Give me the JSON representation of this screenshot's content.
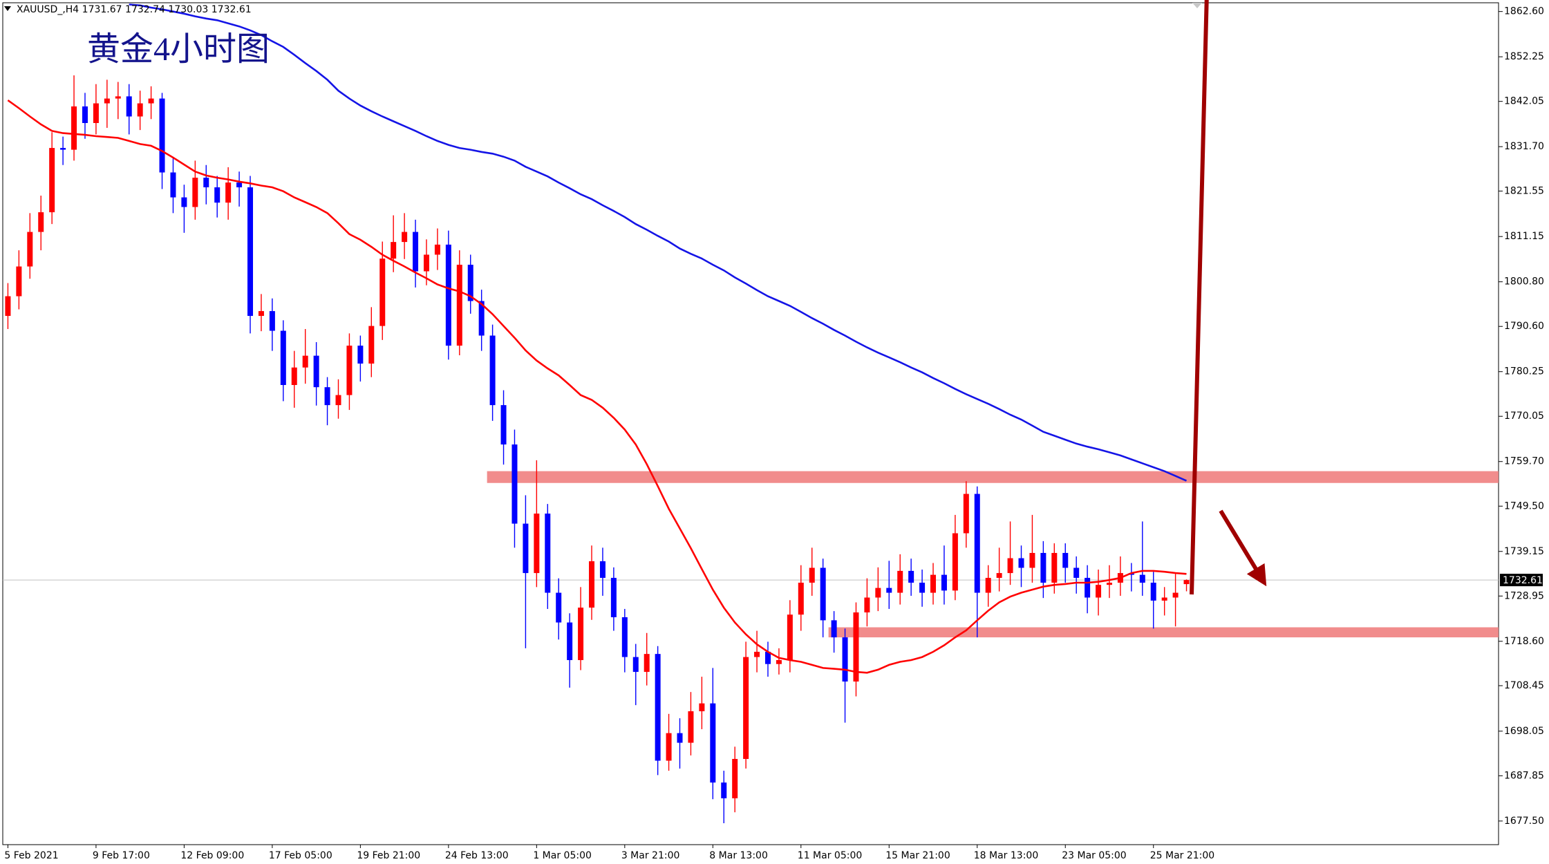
{
  "chart_data": {
    "type": "candlestick",
    "title": "黄金4小时图",
    "symbol": "XAUUSD_,H4",
    "categories": [
      "5 Feb 2021",
      null,
      null,
      null,
      null,
      null,
      null,
      null,
      "9 Feb 17:00",
      null,
      null,
      null,
      null,
      null,
      null,
      null,
      "12 Feb 09:00",
      null,
      null,
      null,
      null,
      null,
      null,
      null,
      "17 Feb 05:00",
      null,
      null,
      null,
      null,
      null,
      null,
      null,
      "19 Feb 21:00",
      null,
      null,
      null,
      null,
      null,
      null,
      null,
      "24 Feb 13:00",
      null,
      null,
      null,
      null,
      null,
      null,
      null,
      "1 Mar 05:00",
      null,
      null,
      null,
      null,
      null,
      null,
      null,
      "3 Mar 21:00",
      null,
      null,
      null,
      null,
      null,
      null,
      null,
      "8 Mar 13:00",
      null,
      null,
      null,
      null,
      null,
      null,
      null,
      "11 Mar 05:00",
      null,
      null,
      null,
      null,
      null,
      null,
      null,
      "15 Mar 21:00",
      null,
      null,
      null,
      null,
      null,
      null,
      null,
      "18 Mar 13:00",
      null,
      null,
      null,
      null,
      null,
      null,
      null,
      "23 Mar 05:00",
      null,
      null,
      null,
      null,
      null,
      null,
      null,
      "25 Mar 21:00",
      null,
      null,
      null
    ],
    "open": [
      1793.0,
      1797.5,
      1804.3,
      1812.2,
      1816.7,
      1831.4,
      1831.0,
      1840.9,
      1837.1,
      1841.6,
      1842.7,
      1843.2,
      1838.6,
      1841.6,
      1842.7,
      1825.8,
      1820.1,
      1817.9,
      1824.6,
      1822.4,
      1818.9,
      1823.5,
      1822.4,
      1793.0,
      1794.1,
      1789.6,
      1777.2,
      1781.2,
      1783.9,
      1776.7,
      1772.6,
      1774.9,
      1786.2,
      1782.1,
      1790.7,
      1806.1,
      1809.9,
      1812.2,
      1803.2,
      1807.0,
      1809.3,
      1786.2,
      1804.7,
      1796.4,
      1788.5,
      1772.6,
      1763.6,
      1745.5,
      1734.2,
      1747.8,
      1729.7,
      1722.9,
      1714.3,
      1726.3,
      1736.9,
      1733.1,
      1724.1,
      1715.0,
      1711.6,
      1715.7,
      1691.3,
      1697.6,
      1695.4,
      1702.6,
      1704.4,
      1686.3,
      1682.7,
      1691.7,
      1715.0,
      1716.2,
      1713.4,
      1714.3,
      1724.7,
      1732.0,
      1735.4,
      1723.4,
      1719.5,
      1709.4,
      1725.2,
      1728.6,
      1730.8,
      1729.7,
      1734.7,
      1732.0,
      1729.7,
      1733.8,
      1730.2,
      1743.3,
      1752.3,
      1729.7,
      1733.1,
      1734.2,
      1737.6,
      1735.4,
      1738.8,
      1732.0,
      1738.8,
      1735.4,
      1733.1,
      1728.6,
      1731.5,
      1732.0,
      1734.2,
      1733.8,
      1732.0,
      1727.9,
      1728.6,
      1731.67
    ],
    "high": [
      1800.5,
      1808.0,
      1816.5,
      1820.5,
      1835.0,
      1834.0,
      1848.0,
      1844.0,
      1846.0,
      1847.0,
      1846.5,
      1846.0,
      1844.5,
      1845.5,
      1844.0,
      1829.0,
      1823.0,
      1828.5,
      1827.5,
      1825.0,
      1827.0,
      1826.0,
      1825.0,
      1798.0,
      1797.0,
      1792.0,
      1785.0,
      1790.0,
      1787.0,
      1779.0,
      1778.5,
      1789.0,
      1788.5,
      1795.0,
      1810.0,
      1816.0,
      1816.5,
      1815.0,
      1810.5,
      1813.0,
      1812.5,
      1808.0,
      1807.0,
      1799.0,
      1791.0,
      1776.0,
      1767.0,
      1752.0,
      1760.0,
      1750.0,
      1733.0,
      1725.0,
      1731.0,
      1740.5,
      1740.0,
      1735.5,
      1726.0,
      1718.0,
      1720.5,
      1717.5,
      1702.0,
      1701.0,
      1707.0,
      1710.5,
      1712.5,
      1689.0,
      1694.5,
      1718.5,
      1721.0,
      1718.5,
      1717.0,
      1728.0,
      1736.0,
      1740.0,
      1737.5,
      1725.5,
      1721.5,
      1727.5,
      1733.0,
      1735.5,
      1737.0,
      1738.5,
      1737.5,
      1735.0,
      1736.5,
      1740.5,
      1747.5,
      1755.2,
      1754.0,
      1736.0,
      1740.0,
      1746.0,
      1740.5,
      1747.5,
      1741.5,
      1741.0,
      1741.0,
      1738.0,
      1736.0,
      1735.0,
      1736.0,
      1738.0,
      1736.5,
      1746.0,
      1734.5,
      1731.0,
      1734.0,
      1732.74
    ],
    "low": [
      1790.0,
      1794.5,
      1801.5,
      1808.0,
      1814.0,
      1827.5,
      1828.5,
      1833.5,
      1834.5,
      1836.0,
      1838.0,
      1834.5,
      1835.5,
      1838.0,
      1822.0,
      1816.5,
      1812.0,
      1815.0,
      1818.5,
      1815.5,
      1815.0,
      1818.0,
      1789.0,
      1789.5,
      1785.0,
      1773.5,
      1772.0,
      1777.5,
      1772.5,
      1768.0,
      1769.5,
      1771.5,
      1778.0,
      1779.0,
      1787.5,
      1803.0,
      1806.0,
      1799.5,
      1800.0,
      1803.5,
      1783.0,
      1784.0,
      1793.5,
      1785.0,
      1769.0,
      1759.0,
      1740.0,
      1717.0,
      1731.0,
      1726.0,
      1719.0,
      1708.0,
      1712.0,
      1723.5,
      1729.0,
      1721.0,
      1711.5,
      1704.0,
      1708.5,
      1688.0,
      1689.0,
      1689.5,
      1692.5,
      1698.5,
      1682.5,
      1677.0,
      1679.5,
      1689.5,
      1711.5,
      1710.5,
      1711.0,
      1711.5,
      1721.0,
      1729.0,
      1719.5,
      1716.0,
      1700.0,
      1706.0,
      1722.0,
      1725.5,
      1726.0,
      1727.0,
      1729.0,
      1726.5,
      1727.0,
      1727.0,
      1728.0,
      1740.0,
      1719.5,
      1726.5,
      1730.0,
      1731.5,
      1731.0,
      1732.0,
      1728.5,
      1729.5,
      1732.0,
      1729.5,
      1725.0,
      1724.5,
      1728.5,
      1729.0,
      1730.0,
      1729.0,
      1721.5,
      1724.5,
      1722.0,
      1730.03
    ],
    "close": [
      1797.5,
      1804.3,
      1812.2,
      1816.7,
      1831.4,
      1831.0,
      1840.9,
      1837.1,
      1841.6,
      1842.7,
      1843.2,
      1838.6,
      1841.6,
      1842.7,
      1825.8,
      1820.1,
      1817.9,
      1824.6,
      1822.4,
      1818.9,
      1823.5,
      1822.4,
      1793.0,
      1794.1,
      1789.6,
      1777.2,
      1781.2,
      1783.9,
      1776.7,
      1772.6,
      1774.9,
      1786.2,
      1782.1,
      1790.7,
      1806.1,
      1809.9,
      1812.2,
      1803.2,
      1807.0,
      1809.3,
      1786.2,
      1804.7,
      1796.4,
      1788.5,
      1772.6,
      1763.6,
      1745.5,
      1734.2,
      1747.8,
      1729.7,
      1722.9,
      1714.3,
      1726.3,
      1736.9,
      1733.1,
      1724.1,
      1715.0,
      1711.6,
      1715.7,
      1691.3,
      1697.6,
      1695.4,
      1702.6,
      1704.4,
      1686.3,
      1682.7,
      1691.7,
      1715.0,
      1716.2,
      1713.4,
      1714.3,
      1724.7,
      1732.0,
      1735.4,
      1723.4,
      1719.5,
      1709.4,
      1725.2,
      1728.6,
      1730.8,
      1729.7,
      1734.7,
      1732.0,
      1729.7,
      1733.8,
      1730.2,
      1743.3,
      1752.3,
      1729.7,
      1733.1,
      1734.2,
      1737.6,
      1735.4,
      1738.8,
      1732.0,
      1738.8,
      1735.4,
      1733.1,
      1728.6,
      1731.5,
      1732.0,
      1734.2,
      1733.8,
      1732.0,
      1727.9,
      1728.6,
      1729.7,
      1732.61
    ],
    "up_color": "#ff0000",
    "down_color": "#0000ff",
    "moving_averages": [
      {
        "color": "#ff0000",
        "values": [
          1842.3,
          1840.5,
          1838.6,
          1836.8,
          1835.3,
          1834.8,
          1834.6,
          1834.4,
          1834.1,
          1833.9,
          1833.7,
          1833.0,
          1832.3,
          1831.9,
          1830.7,
          1829.2,
          1827.6,
          1826.0,
          1825.1,
          1824.6,
          1824.2,
          1823.7,
          1823.3,
          1822.8,
          1822.4,
          1821.5,
          1820.1,
          1819.0,
          1817.9,
          1816.5,
          1814.2,
          1811.7,
          1810.4,
          1808.8,
          1807.0,
          1805.6,
          1804.3,
          1802.9,
          1801.6,
          1800.2,
          1799.3,
          1798.6,
          1797.5,
          1795.7,
          1793.4,
          1790.7,
          1788.0,
          1785.1,
          1782.8,
          1781.0,
          1779.4,
          1777.2,
          1774.9,
          1773.8,
          1772.0,
          1769.7,
          1767.0,
          1763.6,
          1759.1,
          1754.1,
          1748.9,
          1744.4,
          1739.9,
          1735.1,
          1730.4,
          1726.3,
          1722.9,
          1720.2,
          1717.9,
          1716.2,
          1714.8,
          1714.3,
          1713.9,
          1713.2,
          1712.5,
          1712.3,
          1712.1,
          1711.6,
          1711.4,
          1712.1,
          1713.2,
          1713.9,
          1714.3,
          1715.0,
          1716.2,
          1717.7,
          1719.5,
          1721.1,
          1723.4,
          1725.6,
          1727.5,
          1728.8,
          1729.7,
          1730.4,
          1731.1,
          1731.5,
          1731.7,
          1732.0,
          1732.0,
          1732.2,
          1732.6,
          1733.1,
          1734.2,
          1734.7,
          1734.7,
          1734.5,
          1734.2,
          1734.0
        ]
      },
      {
        "color": "#1414e6",
        "values": [
          null,
          null,
          null,
          null,
          null,
          null,
          null,
          null,
          null,
          null,
          null,
          1864.2,
          1864.0,
          1863.5,
          1863.1,
          1862.6,
          1862.1,
          1861.5,
          1861.0,
          1860.6,
          1859.9,
          1859.2,
          1858.3,
          1857.2,
          1855.8,
          1854.5,
          1852.7,
          1850.8,
          1849.0,
          1847.0,
          1844.5,
          1842.7,
          1841.1,
          1839.8,
          1838.6,
          1837.5,
          1836.4,
          1835.3,
          1834.1,
          1833.0,
          1832.1,
          1831.4,
          1831.0,
          1830.5,
          1830.1,
          1829.4,
          1828.5,
          1827.1,
          1826.0,
          1824.9,
          1823.5,
          1822.2,
          1820.8,
          1819.7,
          1818.3,
          1817.0,
          1815.6,
          1814.0,
          1812.7,
          1811.3,
          1810.0,
          1808.4,
          1807.2,
          1806.1,
          1804.7,
          1803.4,
          1801.8,
          1800.4,
          1798.9,
          1797.5,
          1796.4,
          1795.3,
          1793.9,
          1792.5,
          1791.2,
          1789.8,
          1788.5,
          1787.1,
          1785.8,
          1784.6,
          1783.5,
          1782.4,
          1781.2,
          1780.1,
          1778.8,
          1777.6,
          1776.3,
          1775.1,
          1774.0,
          1772.9,
          1771.7,
          1770.4,
          1769.3,
          1767.9,
          1766.5,
          1765.6,
          1764.7,
          1763.8,
          1763.1,
          1762.5,
          1761.8,
          1761.1,
          1760.2,
          1759.3,
          1758.4,
          1757.5,
          1756.4,
          1755.3
        ]
      }
    ],
    "zones": [
      {
        "low": 1754.8,
        "high": 1757.5,
        "start": 44,
        "color": "#f08080"
      },
      {
        "low": 1719.5,
        "high": 1721.8,
        "start": 75,
        "color": "#f08080"
      }
    ],
    "ylim": [
      1672.1,
      1864.6
    ],
    "yticks": [
      {
        "value": 1862.6,
        "label": "1862.60"
      },
      1852.25,
      1842.05,
      {
        "value": 1831.7,
        "label": "1831.70"
      },
      1821.55,
      1811.15,
      {
        "value": 1800.8,
        "label": "1800.80"
      },
      {
        "value": 1790.6,
        "label": "1790.60"
      },
      1780.25,
      1770.05,
      {
        "value": 1759.7,
        "label": "1759.70"
      },
      {
        "value": 1749.5,
        "label": "1749.50"
      },
      1739.15,
      1728.95,
      {
        "value": 1718.6,
        "label": "1718.60"
      },
      1708.45,
      1698.05,
      1687.85,
      {
        "value": 1677.5,
        "label": "1677.50"
      }
    ]
  }
}
